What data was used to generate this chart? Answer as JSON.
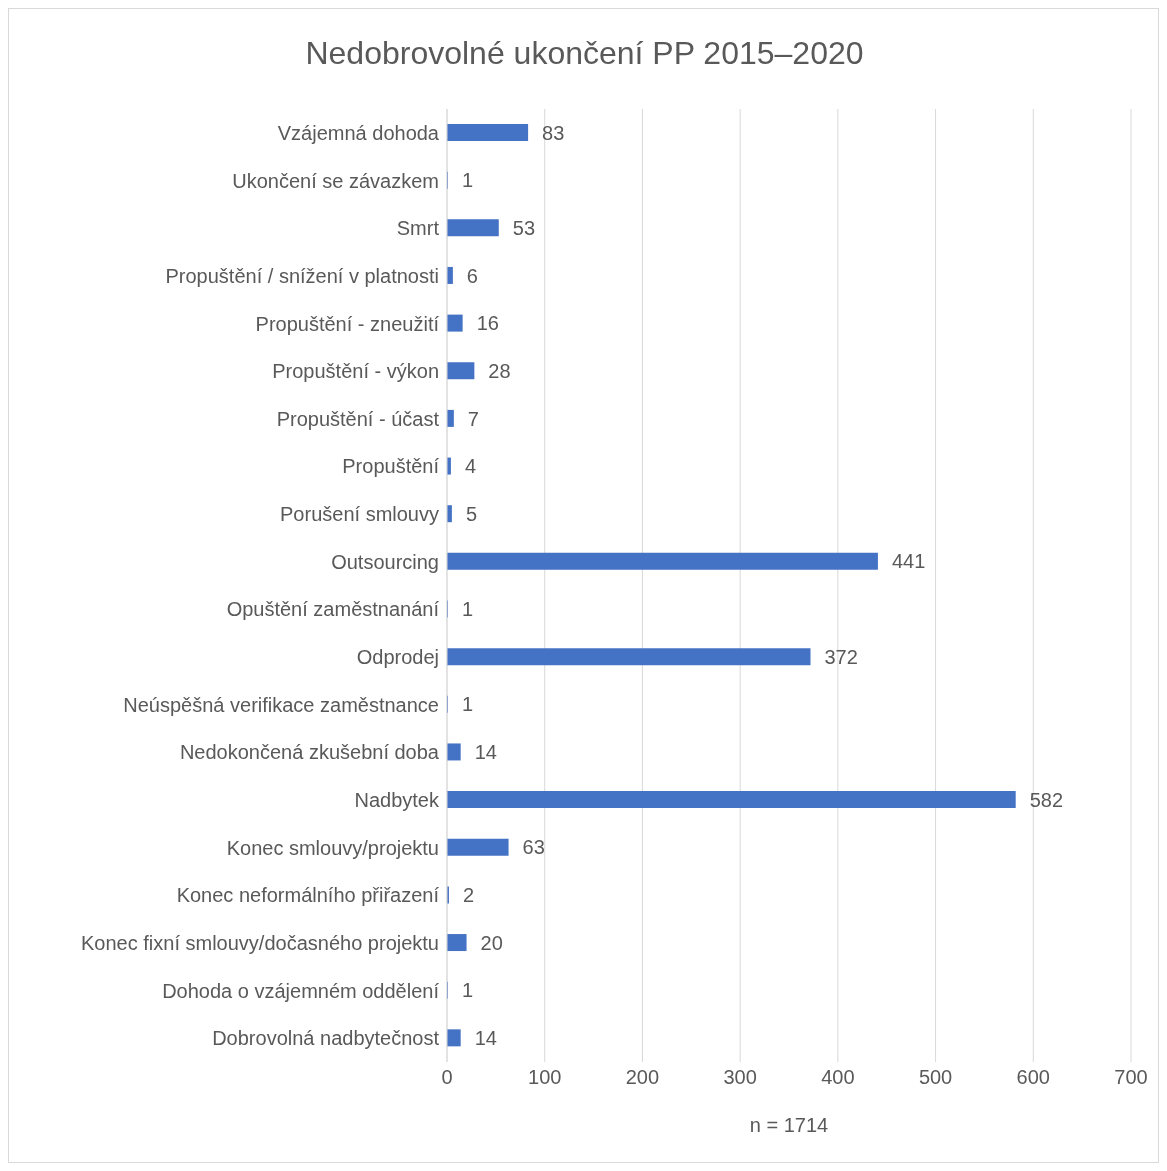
{
  "chart_data": {
    "type": "bar",
    "orientation": "horizontal",
    "title": "Nedobrovolné ukončení PP 2015–2020",
    "xlabel": "n = 1714",
    "categories": [
      "Vzájemná dohoda",
      "Ukončení se závazkem",
      "Smrt",
      "Propuštění / snížení v platnosti",
      "Propuštění - zneužití",
      "Propuštění - výkon",
      "Propuštění - účast",
      "Propuštění",
      "Porušení smlouvy",
      "Outsourcing",
      "Opuštění zaměstnanání",
      "Odprodej",
      "Neúspěšná verifikace zaměstnance",
      "Nedokončená zkušební doba",
      "Nadbytek",
      "Konec smlouvy/projektu",
      "Konec neformálního přiřazení",
      "Konec fixní smlouvy/dočasného projektu",
      "Dohoda o vzájemném oddělení",
      "Dobrovolná nadbytečnost"
    ],
    "values": [
      83,
      1,
      53,
      6,
      16,
      28,
      7,
      4,
      5,
      441,
      1,
      372,
      1,
      14,
      582,
      63,
      2,
      20,
      1,
      14
    ],
    "color": "#4472c4",
    "xlim": [
      0,
      700
    ],
    "xticks": [
      0,
      100,
      200,
      300,
      400,
      500,
      600,
      700
    ],
    "grid": "x",
    "data_labels": true
  }
}
